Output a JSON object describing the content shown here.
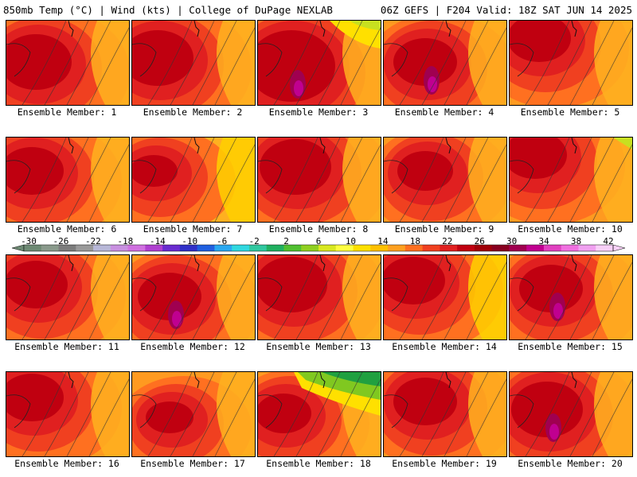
{
  "header": {
    "left": "850mb Temp (°C) | Wind (kts) | College of DuPage NEXLAB",
    "right": "06Z GEFS | F204 Valid: 18Z SAT JUN 14 2025"
  },
  "members": [
    {
      "label": "Ensemble Member: 1"
    },
    {
      "label": "Ensemble Member: 2"
    },
    {
      "label": "Ensemble Member: 3"
    },
    {
      "label": "Ensemble Member: 4"
    },
    {
      "label": "Ensemble Member: 5"
    },
    {
      "label": "Ensemble Member: 6"
    },
    {
      "label": "Ensemble Member: 7"
    },
    {
      "label": "Ensemble Member: 8"
    },
    {
      "label": "Ensemble Member: 9"
    },
    {
      "label": "Ensemble Member: 10"
    },
    {
      "label": "Ensemble Member: 11"
    },
    {
      "label": "Ensemble Member: 12"
    },
    {
      "label": "Ensemble Member: 13"
    },
    {
      "label": "Ensemble Member: 14"
    },
    {
      "label": "Ensemble Member: 15"
    },
    {
      "label": "Ensemble Member: 16"
    },
    {
      "label": "Ensemble Member: 17"
    },
    {
      "label": "Ensemble Member: 18"
    },
    {
      "label": "Ensemble Member: 19"
    },
    {
      "label": "Ensemble Member: 20"
    }
  ],
  "colorbar": {
    "ticks": [
      "-30",
      "-26",
      "-22",
      "-18",
      "-14",
      "-10",
      "-6",
      "-2",
      "2",
      "6",
      "10",
      "14",
      "18",
      "22",
      "26",
      "30",
      "34",
      "38",
      "42"
    ],
    "colors": [
      "#6e8a74",
      "#8a9a8c",
      "#7d7d7d",
      "#9a9a9a",
      "#b8b8d8",
      "#c890e0",
      "#d070e0",
      "#b040d0",
      "#6a2cd0",
      "#3030c8",
      "#2060e0",
      "#2aa8f0",
      "#30d8e0",
      "#30c8a0",
      "#20b060",
      "#50c030",
      "#90d020",
      "#d8e820",
      "#ffff40",
      "#ffe000",
      "#ffc000",
      "#ffa020",
      "#ff7020",
      "#f04020",
      "#e02020",
      "#c00010",
      "#a00008",
      "#880020",
      "#a00050",
      "#c00090",
      "#e040c0",
      "#f070e0",
      "#f0a0f0",
      "#f8d0f8"
    ]
  }
}
